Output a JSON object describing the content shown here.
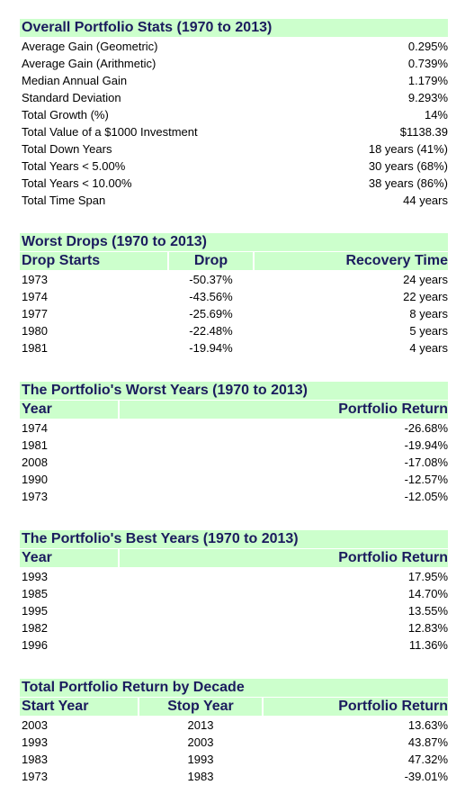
{
  "sections": [
    {
      "title": "Overall Portfolio Stats (1970 to 2013)",
      "rows": [
        [
          "Average Gain (Geometric)",
          "0.295%"
        ],
        [
          "Average Gain (Arithmetic)",
          "0.739%"
        ],
        [
          "Median Annual Gain",
          "1.179%"
        ],
        [
          "Standard Deviation",
          "9.293%"
        ],
        [
          "Total Growth (%)",
          "14%"
        ],
        [
          "Total Value of a $1000 Investment",
          "$1138.39"
        ],
        [
          "Total Down Years",
          "18 years (41%)"
        ],
        [
          "Total Years < 5.00%",
          "30 years (68%)"
        ],
        [
          "Total Years < 10.00%",
          "38 years (86%)"
        ],
        [
          "Total Time Span",
          "44 years"
        ]
      ]
    },
    {
      "title": "Worst Drops (1970 to 2013)",
      "headers": [
        "Drop Starts",
        "Drop",
        "Recovery Time"
      ],
      "rows": [
        [
          "1973",
          "-50.37%",
          "24 years"
        ],
        [
          "1974",
          "-43.56%",
          "22 years"
        ],
        [
          "1977",
          "-25.69%",
          "8 years"
        ],
        [
          "1980",
          "-22.48%",
          "5 years"
        ],
        [
          "1981",
          "-19.94%",
          "4 years"
        ]
      ]
    },
    {
      "title": "The Portfolio's Worst Years (1970 to 2013)",
      "headers": [
        "Year",
        "Portfolio Return"
      ],
      "rows": [
        [
          "1974",
          "-26.68%"
        ],
        [
          "1981",
          "-19.94%"
        ],
        [
          "2008",
          "-17.08%"
        ],
        [
          "1990",
          "-12.57%"
        ],
        [
          "1973",
          "-12.05%"
        ]
      ]
    },
    {
      "title": "The Portfolio's Best Years (1970 to 2013)",
      "headers": [
        "Year",
        "Portfolio Return"
      ],
      "rows": [
        [
          "1993",
          "17.95%"
        ],
        [
          "1985",
          "14.70%"
        ],
        [
          "1995",
          "13.55%"
        ],
        [
          "1982",
          "12.83%"
        ],
        [
          "1996",
          "11.36%"
        ]
      ]
    },
    {
      "title": "Total Portfolio Return by Decade",
      "headers": [
        "Start Year",
        "Stop Year",
        "Portfolio Return"
      ],
      "rows": [
        [
          "2003",
          "2013",
          "13.63%"
        ],
        [
          "1993",
          "2003",
          "43.87%"
        ],
        [
          "1983",
          "1993",
          "47.32%"
        ],
        [
          "1973",
          "1983",
          "-39.01%"
        ]
      ]
    }
  ]
}
